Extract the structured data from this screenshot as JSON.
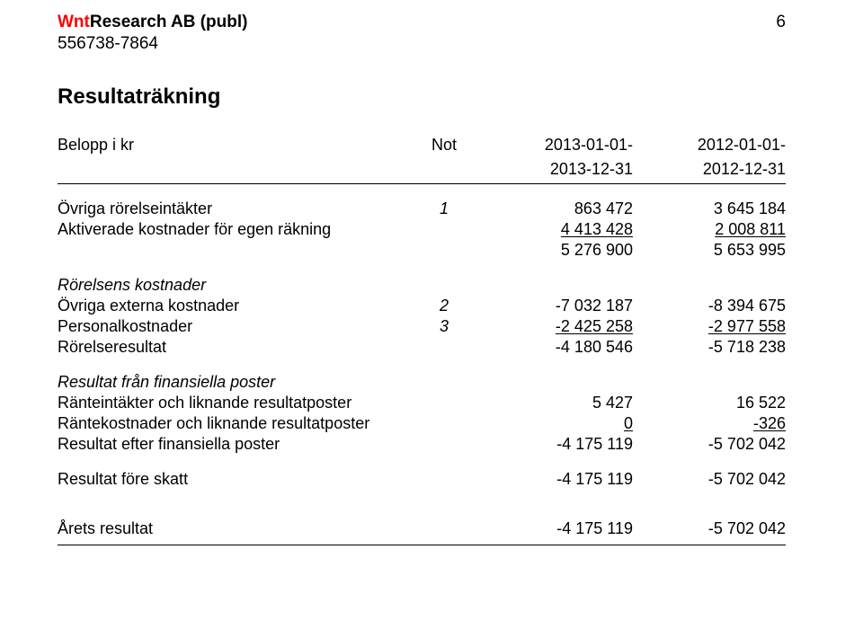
{
  "header": {
    "company_prefix": "Wnt",
    "company_rest": "Research AB (publ)",
    "org_nr": "556738-7864",
    "page_number": "6"
  },
  "title": "Resultaträkning",
  "columns": {
    "label": "Belopp i kr",
    "not": "Not",
    "y1_top": "2013-01-01-",
    "y1_bot": "2013-12-31",
    "y2_top": "2012-01-01-",
    "y2_bot": "2012-12-31"
  },
  "rows": {
    "r1": {
      "label": "Övriga rörelseintäkter",
      "not": "1",
      "y1": "863 472",
      "y2": "3 645 184"
    },
    "r2": {
      "label": "Aktiverade kostnader för egen räkning",
      "y1": "4 413 428",
      "y2": "2 008 811"
    },
    "r3": {
      "y1": "5 276 900",
      "y2": "5 653 995"
    },
    "sec1": {
      "label": "Rörelsens kostnader"
    },
    "r4": {
      "label": "Övriga externa kostnader",
      "not": "2",
      "y1": "-7 032 187",
      "y2": "-8 394 675"
    },
    "r5": {
      "label": "Personalkostnader",
      "not": "3",
      "y1": "-2 425 258",
      "y2": "-2 977 558"
    },
    "r6": {
      "label": "Rörelseresultat",
      "y1": "-4 180 546",
      "y2": "-5 718 238"
    },
    "sec2": {
      "label": "Resultat från finansiella poster"
    },
    "r7": {
      "label": "Ränteintäkter och liknande resultatposter",
      "y1": "5 427",
      "y2": "16 522"
    },
    "r8": {
      "label": "Räntekostnader och liknande resultatposter",
      "y1": "0",
      "y2": "-326"
    },
    "r9": {
      "label": "Resultat efter finansiella poster",
      "y1": "-4 175 119",
      "y2": "-5 702 042"
    },
    "r10": {
      "label": "Resultat före skatt",
      "y1": "-4 175 119",
      "y2": "-5 702 042"
    },
    "r11": {
      "label": "Årets resultat",
      "y1": "-4 175 119",
      "y2": "-5 702 042"
    }
  }
}
